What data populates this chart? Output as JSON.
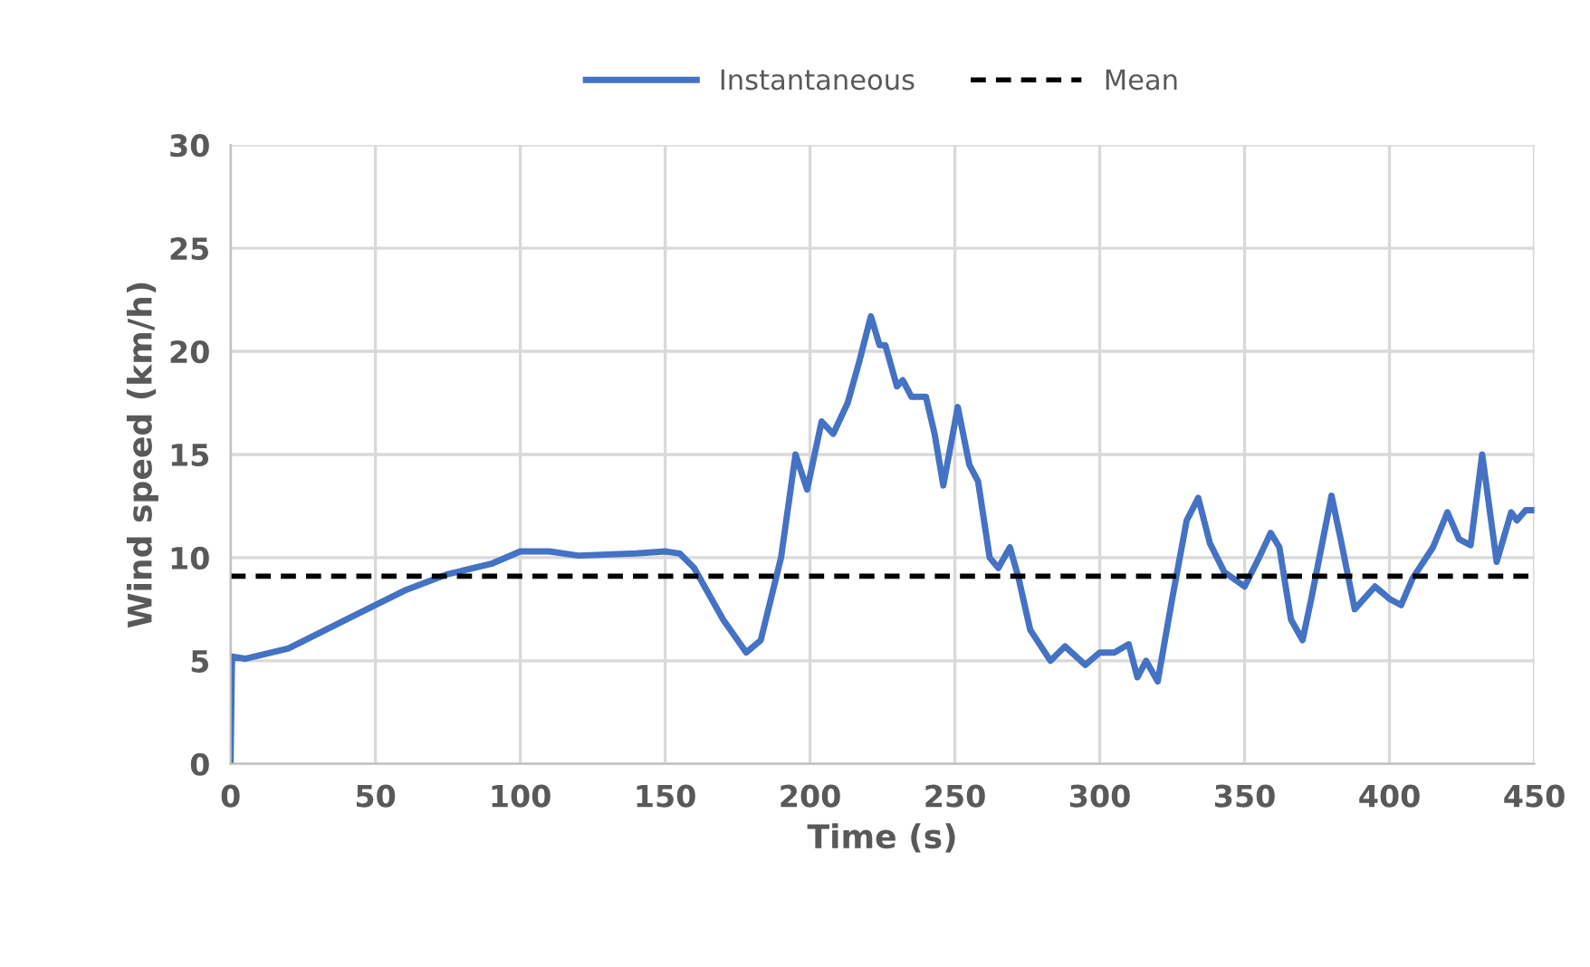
{
  "chart_data": {
    "type": "line",
    "xlabel": "Time (s)",
    "ylabel": "Wind speed (km/h)",
    "xlim": [
      0,
      450
    ],
    "ylim": [
      0,
      30
    ],
    "xticks": [
      0,
      50,
      100,
      150,
      200,
      250,
      300,
      350,
      400,
      450
    ],
    "yticks": [
      0,
      5,
      10,
      15,
      20,
      25,
      30
    ],
    "grid": true,
    "legend": "top",
    "marker": "none",
    "line_style": "solid",
    "series": [
      {
        "name": "Instantaneous",
        "color": "#4472c4",
        "x": [
          0,
          0.5,
          5,
          20,
          40,
          60,
          75,
          90,
          100,
          110,
          120,
          140,
          150,
          155,
          160,
          170,
          178,
          183,
          190,
          195,
          199,
          204,
          208,
          213,
          217,
          221,
          224,
          226,
          230,
          232,
          235,
          240,
          243,
          246,
          251,
          255,
          258,
          262,
          265,
          269,
          272,
          276,
          283,
          288,
          295,
          300,
          305,
          310,
          313,
          316,
          320,
          325,
          330,
          334,
          338,
          343,
          350,
          355,
          359,
          362,
          366,
          370,
          373,
          380,
          383,
          388,
          395,
          400,
          404,
          408,
          415,
          420,
          424,
          428,
          432,
          437,
          442,
          444,
          447,
          450
        ],
        "values": [
          0,
          5.2,
          5.1,
          5.6,
          7.0,
          8.4,
          9.2,
          9.7,
          10.3,
          10.3,
          10.1,
          10.2,
          10.3,
          10.2,
          9.5,
          7.0,
          5.4,
          6.0,
          10,
          15.0,
          13.3,
          16.6,
          16.0,
          17.5,
          19.5,
          21.7,
          20.3,
          20.3,
          18.3,
          18.6,
          17.8,
          17.8,
          16,
          13.5,
          17.3,
          14.5,
          13.7,
          10.0,
          9.5,
          10.5,
          9.0,
          6.5,
          5.0,
          5.7,
          4.8,
          5.4,
          5.4,
          5.8,
          4.2,
          5.0,
          4.0,
          8,
          11.8,
          12.9,
          10.7,
          9.3,
          8.6,
          10,
          11.2,
          10.5,
          7,
          6.0,
          8,
          13.0,
          11,
          7.5,
          8.6,
          8.0,
          7.7,
          9,
          10.5,
          12.2,
          10.9,
          10.6,
          15.0,
          9.8,
          12.2,
          11.8,
          12.3,
          12.3
        ]
      }
    ],
    "ref_lines": [
      {
        "axis": "y",
        "value": 9.1,
        "label": "Mean",
        "color": "#000000",
        "line_style": "dashed"
      }
    ]
  }
}
